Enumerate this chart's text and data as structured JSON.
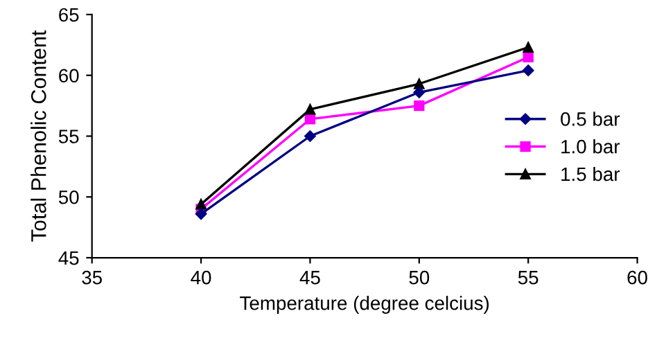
{
  "chart_data": {
    "type": "line",
    "xlabel": "Temperature (degree celcius)",
    "ylabel": "Total Phenolic Content",
    "x": [
      40,
      45,
      50,
      55
    ],
    "series": [
      {
        "name": "0.5 bar",
        "color": "#000080",
        "marker": "diamond",
        "values": [
          48.6,
          55.0,
          58.6,
          60.4
        ]
      },
      {
        "name": "1.0 bar",
        "color": "#ff00ff",
        "marker": "square",
        "values": [
          49.0,
          56.4,
          57.5,
          61.5
        ]
      },
      {
        "name": "1.5 bar",
        "color": "#000000",
        "marker": "triangle",
        "values": [
          49.4,
          57.2,
          59.3,
          62.3
        ]
      }
    ],
    "xlim": [
      35,
      60
    ],
    "xticks": [
      35,
      40,
      45,
      50,
      55,
      60
    ],
    "ylim": [
      45,
      65
    ],
    "yticks": [
      45,
      50,
      55,
      60,
      65
    ],
    "grid": false,
    "legend": "right",
    "line_style": "solid"
  }
}
